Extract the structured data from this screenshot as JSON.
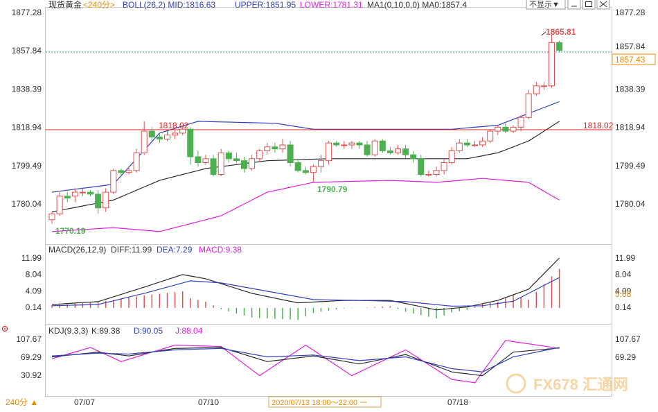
{
  "header": {
    "instrument": "现货黄金",
    "period_tag": "<240分>",
    "boll": "BOLL(26,2) MID:1816.63",
    "upper": "UPPER:1851.95",
    "lower": "LOWER:1781.31",
    "ma": "MA1(0,10,0,0) MA0:1857.4",
    "hide_btn": "不显示▼"
  },
  "colors": {
    "up": "#e05050",
    "down": "#4caf50",
    "boll_upper": "#3040c0",
    "boll_mid": "#2a2a2a",
    "boll_lower": "#e020e0",
    "hline": "#e02020",
    "axis_text": "#333333",
    "last_price_box": "#e88a00"
  },
  "price_axis": {
    "ticks": [
      "1877.28",
      "1857.84",
      "1838.39",
      "1818.94",
      "1799.49",
      "1780.04"
    ]
  },
  "price_marks": {
    "high_label": "1865.81",
    "low_label_1": "1770.19",
    "low_label_2": "1790.79",
    "hline_label_left": "1818.02",
    "hline_label_right": "1818.02",
    "last_price": "1857.84",
    "last_price_box": "1857.43"
  },
  "macd": {
    "title": "MACD(26,12,9)",
    "diff": "DIFF:11.99",
    "dea": "DEA:7.29",
    "macd": "MACD:9.38",
    "ticks": [
      "11.99",
      "8.04",
      "4.09",
      "0.14"
    ],
    "side_value": "5.08"
  },
  "kdj": {
    "title": "KDJ(9,3,3)",
    "k": "K:89.38",
    "d": "D:90.05",
    "j": "J:88.04",
    "ticks": [
      "107.67",
      "69.29",
      "30.92"
    ],
    "side_value": "30.92"
  },
  "footer": {
    "period": "240分 ▲",
    "dates": [
      "07/07",
      "07/10",
      "07/18"
    ],
    "crosshair_time": "2020/07/13 18:00～22:00 一"
  },
  "watermark": "FX678 汇通网",
  "chart_data": {
    "type": "candlestick",
    "title": "现货黄金 <240分>",
    "x_dates": [
      "07/07",
      "07/10",
      "07/18"
    ],
    "ylim": [
      1766,
      1880
    ],
    "candles": [
      [
        1772,
        1775,
        1770,
        1776
      ],
      [
        1775,
        1784,
        1774,
        1786
      ],
      [
        1784,
        1783,
        1781,
        1786
      ],
      [
        1784,
        1786,
        1781,
        1788
      ],
      [
        1786,
        1786,
        1784,
        1788
      ],
      [
        1786,
        1785,
        1784,
        1787
      ],
      [
        1785,
        1778,
        1775,
        1787
      ],
      [
        1778,
        1786,
        1776,
        1788
      ],
      [
        1786,
        1797,
        1785,
        1798
      ],
      [
        1797,
        1796,
        1794,
        1798
      ],
      [
        1796,
        1797,
        1795,
        1799
      ],
      [
        1797,
        1806,
        1796,
        1808
      ],
      [
        1806,
        1817,
        1805,
        1822
      ],
      [
        1817,
        1814,
        1812,
        1819
      ],
      [
        1814,
        1813,
        1811,
        1816
      ],
      [
        1813,
        1815,
        1812,
        1817
      ],
      [
        1815,
        1816,
        1813,
        1818
      ],
      [
        1816,
        1818,
        1815,
        1820
      ],
      [
        1818,
        1804,
        1800,
        1819
      ],
      [
        1804,
        1801,
        1799,
        1807
      ],
      [
        1801,
        1803,
        1800,
        1805
      ],
      [
        1803,
        1795,
        1794,
        1805
      ],
      [
        1795,
        1806,
        1794,
        1808
      ],
      [
        1806,
        1803,
        1801,
        1807
      ],
      [
        1803,
        1802,
        1801,
        1806
      ],
      [
        1802,
        1798,
        1796,
        1804
      ],
      [
        1798,
        1803,
        1797,
        1805
      ],
      [
        1803,
        1807,
        1802,
        1808
      ],
      [
        1807,
        1809,
        1805,
        1811
      ],
      [
        1809,
        1808,
        1806,
        1811
      ],
      [
        1808,
        1810,
        1806,
        1813
      ],
      [
        1810,
        1801,
        1799,
        1812
      ],
      [
        1801,
        1797,
        1796,
        1803
      ],
      [
        1797,
        1796,
        1795,
        1799
      ],
      [
        1796,
        1799,
        1791,
        1800
      ],
      [
        1799,
        1802,
        1796,
        1805
      ],
      [
        1802,
        1811,
        1800,
        1812
      ],
      [
        1811,
        1810,
        1809,
        1812
      ],
      [
        1810,
        1810,
        1808,
        1812
      ],
      [
        1810,
        1811,
        1808,
        1812
      ],
      [
        1811,
        1810,
        1808,
        1812
      ],
      [
        1810,
        1805,
        1804,
        1812
      ],
      [
        1805,
        1812,
        1804,
        1813
      ],
      [
        1812,
        1807,
        1806,
        1813
      ],
      [
        1807,
        1806,
        1805,
        1809
      ],
      [
        1806,
        1808,
        1805,
        1810
      ],
      [
        1808,
        1805,
        1803,
        1810
      ],
      [
        1805,
        1803,
        1801,
        1807
      ],
      [
        1803,
        1795,
        1794,
        1805
      ],
      [
        1795,
        1795,
        1794,
        1797
      ],
      [
        1795,
        1797,
        1794,
        1799
      ],
      [
        1797,
        1801,
        1795,
        1803
      ],
      [
        1801,
        1807,
        1800,
        1809
      ],
      [
        1807,
        1811,
        1806,
        1813
      ],
      [
        1811,
        1810,
        1809,
        1813
      ],
      [
        1810,
        1810,
        1809,
        1812
      ],
      [
        1810,
        1812,
        1809,
        1814
      ],
      [
        1812,
        1817,
        1811,
        1818
      ],
      [
        1817,
        1819,
        1815,
        1820
      ],
      [
        1819,
        1817,
        1816,
        1821
      ],
      [
        1817,
        1819,
        1816,
        1820
      ],
      [
        1819,
        1824,
        1817,
        1825
      ],
      [
        1824,
        1836,
        1823,
        1838
      ],
      [
        1836,
        1840,
        1835,
        1842
      ],
      [
        1840,
        1840,
        1838,
        1842
      ],
      [
        1840,
        1862,
        1839,
        1866
      ],
      [
        1862,
        1858,
        1857,
        1863
      ]
    ],
    "boll_upper_endpoints": [
      [
        0,
        1786
      ],
      [
        66,
        1832
      ]
    ],
    "boll_mid_endpoints": [
      [
        0,
        1776
      ],
      [
        66,
        1822
      ]
    ],
    "boll_lower_endpoints": [
      [
        0,
        1766
      ],
      [
        66,
        1782
      ]
    ],
    "hline_value": 1818.02
  }
}
